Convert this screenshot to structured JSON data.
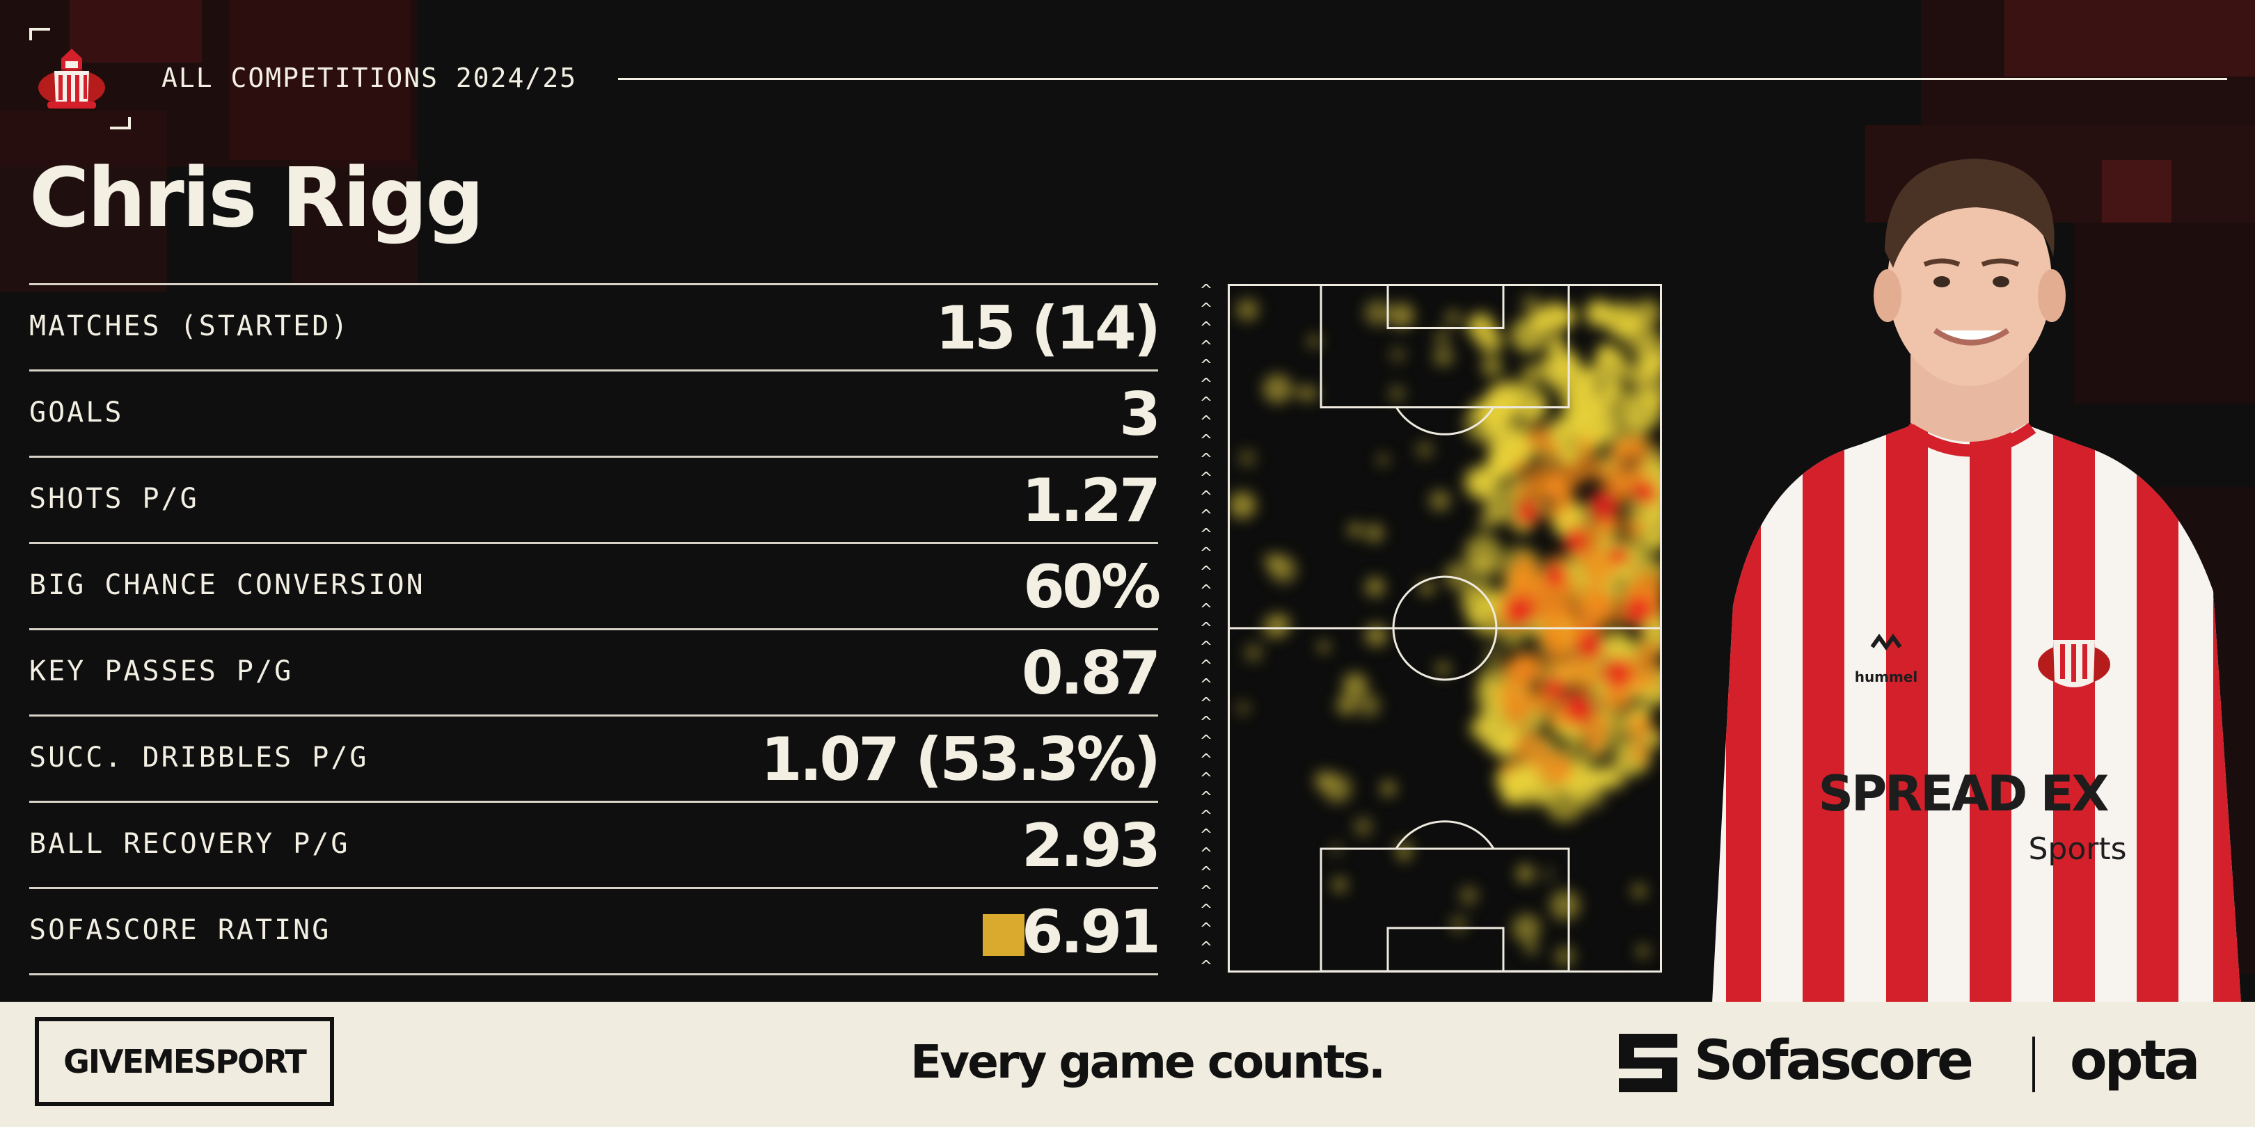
{
  "header": {
    "season_label": "ALL COMPETITIONS 2024/25",
    "player_name": "Chris Rigg",
    "crest_icon": "club-crest-icon"
  },
  "stats": [
    {
      "label": "MATCHES (STARTED)",
      "value": "15 (14)"
    },
    {
      "label": "GOALS",
      "value": "3"
    },
    {
      "label": "SHOTS P/G",
      "value": "1.27"
    },
    {
      "label": "BIG CHANCE CONVERSION",
      "value": "60%"
    },
    {
      "label": "KEY PASSES P/G",
      "value": "0.87"
    },
    {
      "label": "SUCC. DRIBBLES P/G",
      "value": "1.07 (53.3%)"
    },
    {
      "label": "BALL RECOVERY P/G",
      "value": "2.93"
    },
    {
      "label": "SOFASCORE RATING",
      "value": "6.91",
      "badge_color": "#d9aa2e"
    }
  ],
  "heatmap": {
    "attack_direction": "up",
    "icon": "pitch-heatmap"
  },
  "player_photo": {
    "icon": "player-photo",
    "shirt_sponsor": "SPREAD EX",
    "shirt_sponsor_sub": "Sports",
    "kit_brand": "hummel",
    "colors": {
      "red": "#d3202a",
      "white": "#f7f4f0"
    }
  },
  "footer": {
    "publisher": "GIVEMESPORT",
    "tagline": "Every game counts.",
    "partner_1": "Sofascore",
    "partner_2": "opta"
  },
  "theme": {
    "background": "#0f0f0f",
    "accent_dark_red": "#3a1212",
    "text_cream": "#f3efe3",
    "footer_bg": "#f0ecdf"
  }
}
